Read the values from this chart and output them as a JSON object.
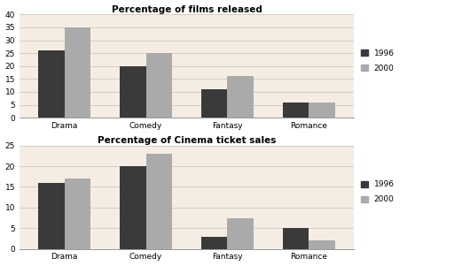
{
  "chart1": {
    "title": "Percentage of films released",
    "categories": [
      "Drama",
      "Comedy",
      "Fantasy",
      "Romance"
    ],
    "values_1996": [
      26,
      20,
      11,
      6
    ],
    "values_2000": [
      35,
      25,
      16,
      6
    ],
    "ylim": [
      0,
      40
    ],
    "yticks": [
      0,
      5,
      10,
      15,
      20,
      25,
      30,
      35,
      40
    ]
  },
  "chart2": {
    "title": "Percentage of Cinema ticket sales",
    "categories": [
      "Drama",
      "Comedy",
      "Fantasy",
      "Romance"
    ],
    "values_1996": [
      16,
      20,
      3,
      5
    ],
    "values_2000": [
      17,
      23,
      7.5,
      2
    ],
    "ylim": [
      0,
      25
    ],
    "yticks": [
      0,
      5,
      10,
      15,
      20,
      25
    ]
  },
  "color_1996": "#3a3a3a",
  "color_2000": "#aaaaaa",
  "fig_background": "#ffffff",
  "plot_background": "#f5ede4",
  "bar_width": 0.32,
  "legend_labels": [
    "1996",
    "2000"
  ],
  "grid_color": "#d0c8c0",
  "spine_color": "#888888"
}
